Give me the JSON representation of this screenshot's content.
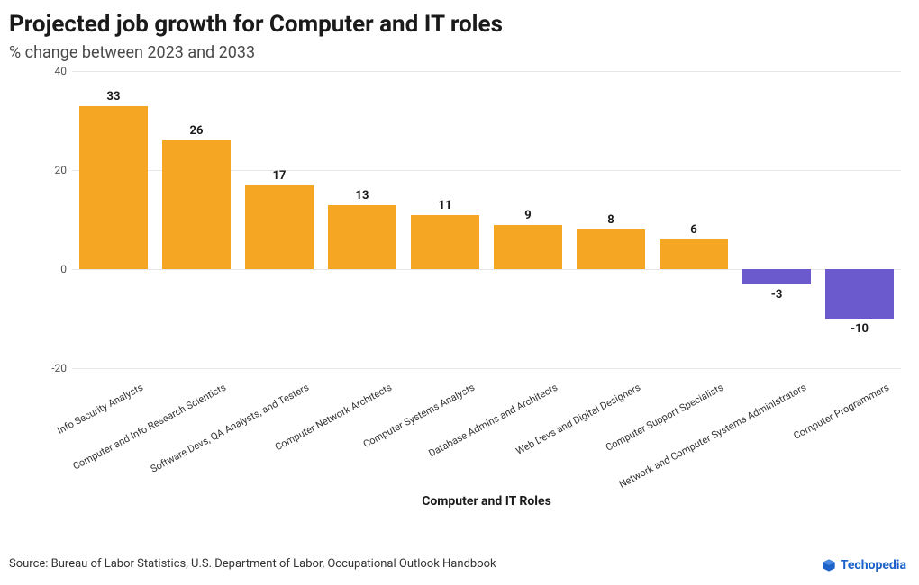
{
  "title": "Projected job growth for Computer and IT roles",
  "subtitle": "% change between 2023 and 2033",
  "x_axis_title": "Computer and IT Roles",
  "source": "Source: Bureau of Labor Statistics, U.S. Department of Labor, Occupational Outlook Handbook",
  "brand": "Techopedia",
  "chart": {
    "type": "bar",
    "ylim": [
      -20,
      40
    ],
    "ytick_step": 20,
    "yticks": [
      -20,
      0,
      20,
      40
    ],
    "grid_color": "#e6e6e6",
    "background_color": "#ffffff",
    "positive_color": "#f5a623",
    "negative_color": "#6a5acd",
    "bar_width_ratio": 0.82,
    "value_fontsize": 13,
    "value_fontweight": 700,
    "category_fontsize": 11,
    "category_rotation_deg": -28,
    "title_fontsize": 26,
    "subtitle_fontsize": 18,
    "xaxis_title_fontsize": 14,
    "categories": [
      "Info Security Analysts",
      "Computer and Info Research Scientists",
      "Software Devs, QA Analysts, and Testers",
      "Computer Network Architects",
      "Computer Systems Analysts",
      "Database Admins and Architects",
      "Web Devs and Digital Designers",
      "Computer Support Specialists",
      "Network and Computer Systems Administrators",
      "Computer Programmers"
    ],
    "values": [
      33,
      26,
      17,
      13,
      11,
      9,
      8,
      6,
      -3,
      -10
    ]
  },
  "brand_color": "#1e63c9"
}
